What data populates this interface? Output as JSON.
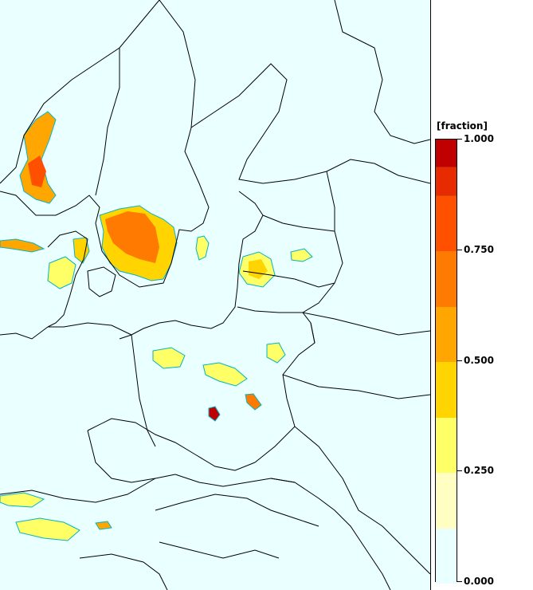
{
  "legend": {
    "title": "[fraction]",
    "tick_labels": [
      "1.000",
      "0.750",
      "0.500",
      "0.250",
      "0.000"
    ],
    "tick_values": [
      1.0,
      0.75,
      0.5,
      0.25,
      0.0
    ],
    "bands": [
      {
        "from": 0.0,
        "to": 0.125,
        "color": "#eaffff"
      },
      {
        "from": 0.125,
        "to": 0.25,
        "color": "#ffffc4"
      },
      {
        "from": 0.25,
        "to": 0.375,
        "color": "#ffff66"
      },
      {
        "from": 0.375,
        "to": 0.5,
        "color": "#ffd400"
      },
      {
        "from": 0.5,
        "to": 0.625,
        "color": "#ffa600"
      },
      {
        "from": 0.625,
        "to": 0.75,
        "color": "#ff7a00"
      },
      {
        "from": 0.75,
        "to": 0.875,
        "color": "#ff5000"
      },
      {
        "from": 0.875,
        "to": 0.938,
        "color": "#e82a00"
      },
      {
        "from": 0.938,
        "to": 1.0,
        "color": "#c00000"
      }
    ]
  },
  "map": {
    "background_color": "#eaffff",
    "border_color": "#000000",
    "contour_color": "#00b4c8"
  }
}
